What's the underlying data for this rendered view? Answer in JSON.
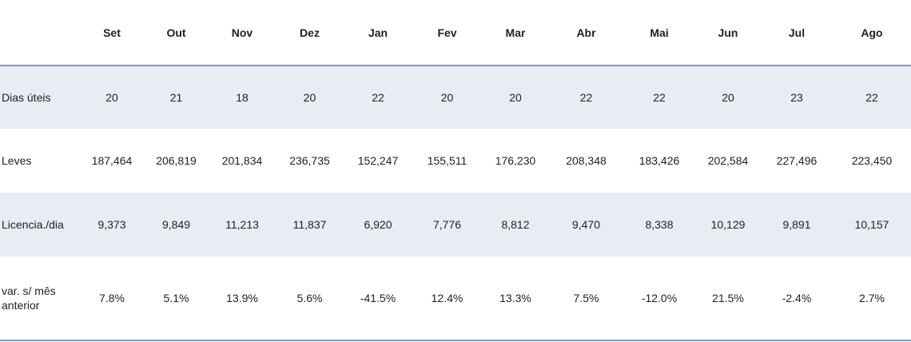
{
  "table": {
    "months": [
      "Set",
      "Out",
      "Nov",
      "Dez",
      "Jan",
      "Fev",
      "Mar",
      "Abr",
      "Mai",
      "Jun",
      "Jul",
      "Ago"
    ],
    "rows": [
      {
        "label": "Dias úteis",
        "values": [
          "20",
          "21",
          "18",
          "20",
          "22",
          "20",
          "20",
          "22",
          "22",
          "20",
          "23",
          "22"
        ]
      },
      {
        "label": "Leves",
        "values": [
          "187,464",
          "206,819",
          "201,834",
          "236,735",
          "152,247",
          "155,511",
          "176,230",
          "208,348",
          "183,426",
          "202,584",
          "227,496",
          "223,450"
        ]
      },
      {
        "label": "Licencia./dia",
        "values": [
          "9,373",
          "9,849",
          "11,213",
          "11,837",
          "6,920",
          "7,776",
          "8,812",
          "9,470",
          "8,338",
          "10,129",
          "9,891",
          "10,157"
        ]
      },
      {
        "label": "var. s/ mês anterior",
        "values": [
          "7.8%",
          "5.1%",
          "13.9%",
          "5.6%",
          "-41.5%",
          "12.4%",
          "13.3%",
          "7.5%",
          "-12.0%",
          "21.5%",
          "-2.4%",
          "2.7%"
        ]
      }
    ]
  },
  "colors": {
    "band": "#e8ecf3",
    "rule": "#7f9bc9"
  }
}
